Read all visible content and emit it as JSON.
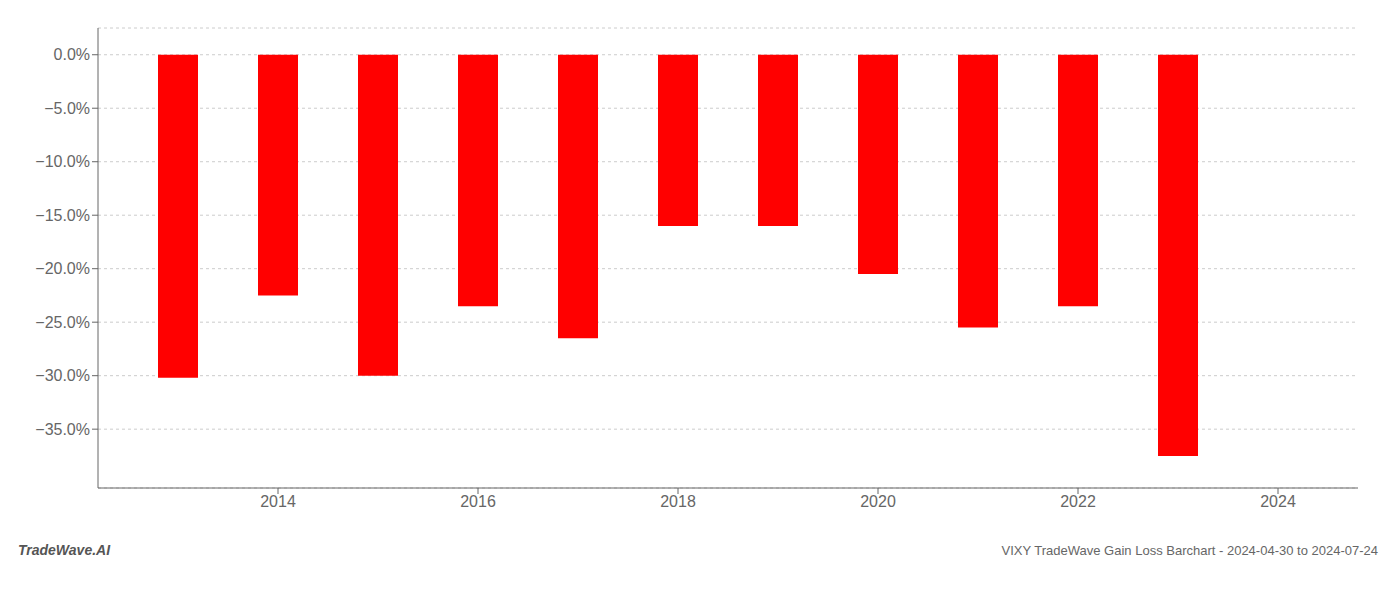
{
  "chart_data": {
    "type": "bar",
    "x": [
      2013,
      2014,
      2015,
      2016,
      2017,
      2018,
      2019,
      2020,
      2021,
      2022,
      2023
    ],
    "values": [
      -30.2,
      -22.5,
      -30.0,
      -23.5,
      -26.5,
      -16.0,
      -16.0,
      -20.5,
      -25.5,
      -23.5,
      -37.5
    ],
    "color": "#ff0000",
    "xlim": [
      2012.2,
      2024.8
    ],
    "xticks": [
      2014,
      2016,
      2018,
      2020,
      2022,
      2024
    ],
    "ylim": [
      -40.5,
      2.5
    ],
    "yticks": [
      {
        "value": 0,
        "label": "0.0%"
      },
      {
        "value": -5.0,
        "label": "−5.0%"
      },
      {
        "value": -10.0,
        "label": "−10.0%"
      },
      {
        "value": -15.0,
        "label": "−15.0%"
      },
      {
        "value": -20.0,
        "label": "−20.0%"
      },
      {
        "value": -25.0,
        "label": "−25.0%"
      },
      {
        "value": -30.0,
        "label": "−30.0%"
      },
      {
        "value": -35.0,
        "label": "−35.0%"
      }
    ],
    "grid": true,
    "annotations": [
      "TradeWave.AI",
      "VIXY TradeWave Gain Loss Barchart - 2024-04-30 to 2024-07-24"
    ]
  }
}
